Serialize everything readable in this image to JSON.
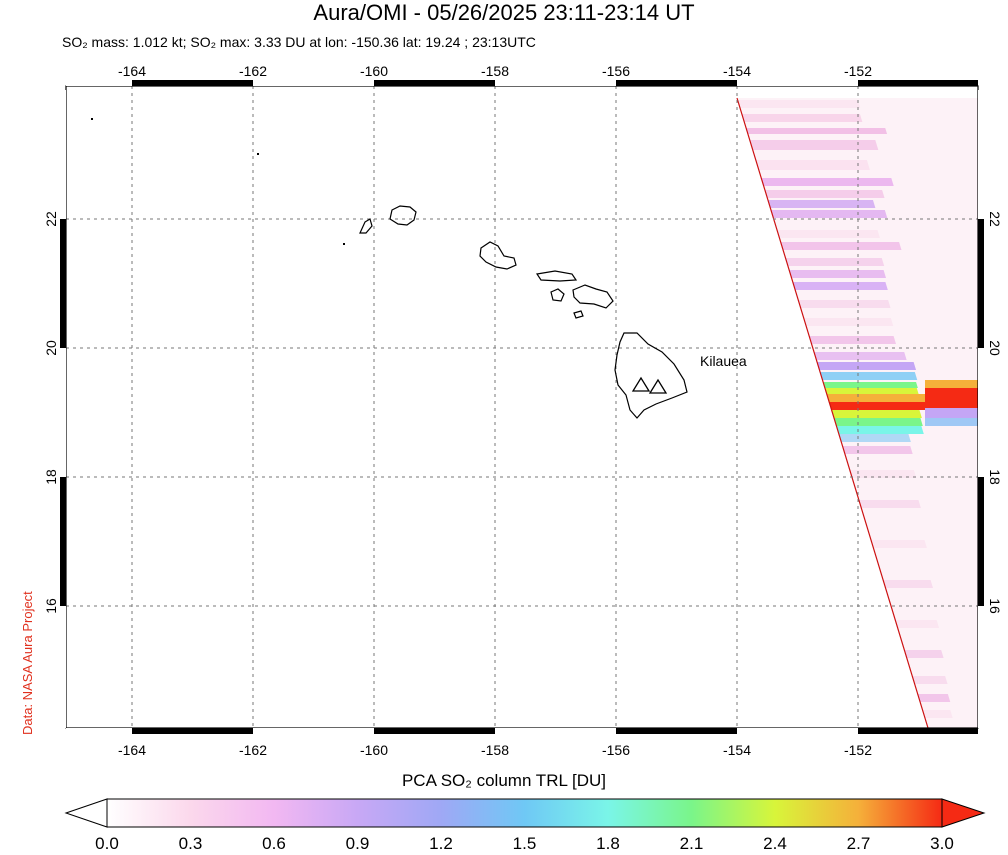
{
  "title": "Aura/OMI - 05/26/2025 23:11-23:14 UT",
  "subtitle": {
    "mass": "SO₂ mass: 1.012 kt; SO₂ max: 3.33 DU at lon: -150.36 lat: 19.24 ; 23:13UTC"
  },
  "credit": "Data: NASA Aura Project",
  "volcano_label": "Kilauea",
  "axes": {
    "lon_ticks": [
      "-164",
      "-162",
      "-160",
      "-158",
      "-156",
      "-154",
      "-152"
    ],
    "lat_ticks": [
      "22",
      "20",
      "18",
      "16"
    ],
    "lon_range": [
      -165.1,
      -150.0
    ],
    "lat_range": [
      14.0,
      24.0
    ]
  },
  "colorbar": {
    "label": "PCA SO₂ column TRL [DU]",
    "ticks": [
      "0.0",
      "0.3",
      "0.6",
      "0.9",
      "1.2",
      "1.5",
      "1.8",
      "2.1",
      "2.4",
      "2.7",
      "3.0"
    ],
    "colors": [
      "#ffffff",
      "#fbd8ec",
      "#f2b8f2",
      "#c8a8f5",
      "#9fa8f5",
      "#6fc8f5",
      "#7af5e8",
      "#7af58a",
      "#d8f53a",
      "#f5b03a",
      "#f52a14"
    ]
  },
  "swath_edge_color": "#cc1111"
}
